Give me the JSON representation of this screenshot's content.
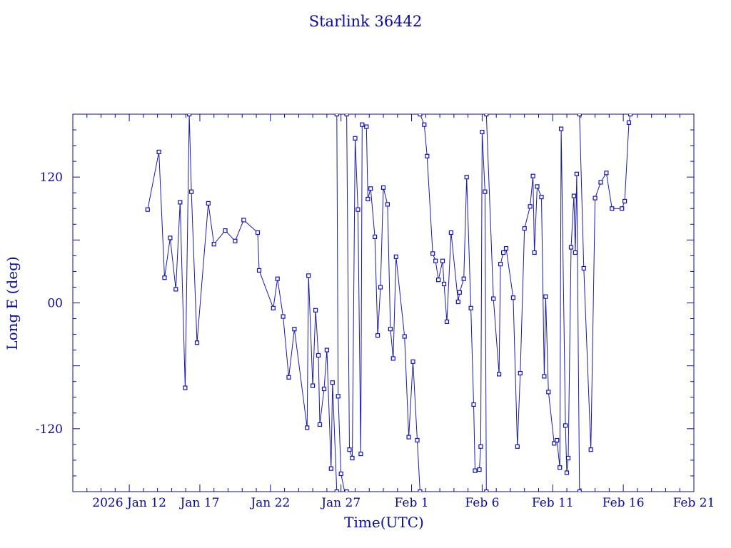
{
  "chart_data": {
    "type": "line",
    "title": "Starlink 36442",
    "xlabel": "Time(UTC)",
    "ylabel": "Long E (deg)",
    "x_unit": "date (2026, UTC)",
    "xlim": [
      "2026-01-08T00:00",
      "2026-02-21T00:00"
    ],
    "ylim": [
      -180,
      180
    ],
    "xticks": [
      {
        "label": "2026 Jan 12",
        "date": "2026-01-12T00:00"
      },
      {
        "label": "Jan 17",
        "date": "2026-01-17T00:00"
      },
      {
        "label": "Jan 22",
        "date": "2026-01-22T00:00"
      },
      {
        "label": "Jan 27",
        "date": "2026-01-27T00:00"
      },
      {
        "label": "Feb  1",
        "date": "2026-02-01T00:00"
      },
      {
        "label": "Feb  6",
        "date": "2026-02-06T00:00"
      },
      {
        "label": "Feb 11",
        "date": "2026-02-11T00:00"
      },
      {
        "label": "Feb 16",
        "date": "2026-02-16T00:00"
      },
      {
        "label": "Feb 21",
        "date": "2026-02-21T00:00"
      }
    ],
    "yticks": [
      {
        "label": "120",
        "value": 120
      },
      {
        "label": "00",
        "value": 0
      },
      {
        "label": "-120",
        "value": -120
      }
    ],
    "grid": false,
    "colors": {
      "axis": "#0a0aa0",
      "line": "#1a1ab0",
      "marker": "#1010c0"
    },
    "series": [
      {
        "marker": "square",
        "points": [
          [
            "2026-01-13T07:12",
            89
          ],
          [
            "2026-01-14T02:24",
            144
          ],
          [
            "2026-01-14T12:00",
            24
          ],
          [
            "2026-01-14T21:36",
            62
          ],
          [
            "2026-01-15T07:12",
            13
          ],
          [
            "2026-01-15T14:24",
            96
          ],
          [
            "2026-01-15T23:00",
            -81
          ],
          [
            "2026-01-16T06:00",
            180
          ],
          [
            "2026-01-16T09:36",
            106
          ],
          [
            "2026-01-16T19:12",
            -38
          ],
          [
            "2026-01-17T14:24",
            95
          ],
          [
            "2026-01-18T00:00",
            56
          ],
          [
            "2026-01-18T19:12",
            69
          ],
          [
            "2026-01-19T12:00",
            59
          ],
          [
            "2026-01-20T02:24",
            79
          ],
          [
            "2026-01-21T02:24",
            67
          ],
          [
            "2026-01-21T04:48",
            31
          ],
          [
            "2026-01-22T04:48",
            -5
          ],
          [
            "2026-01-22T12:00",
            23
          ],
          [
            "2026-01-22T21:36",
            -13
          ],
          [
            "2026-01-23T07:12",
            -71
          ],
          [
            "2026-01-23T16:48",
            -25
          ],
          [
            "2026-01-24T14:24",
            -119
          ],
          [
            "2026-01-24T16:48",
            26
          ],
          [
            "2026-01-25T00:00",
            -79
          ],
          [
            "2026-01-25T04:48",
            -7
          ],
          [
            "2026-01-25T09:36",
            -50
          ],
          [
            "2026-01-25T12:00",
            -116
          ],
          [
            "2026-01-25T19:12",
            -82
          ],
          [
            "2026-01-26T00:00",
            -45
          ],
          [
            "2026-01-26T07:12",
            -158
          ],
          [
            "2026-01-26T09:36",
            -76
          ],
          [
            "2026-01-26T16:48",
            -180
          ]
        ]
      },
      {
        "marker": "square",
        "points": [
          [
            "2026-01-26T16:48",
            180
          ],
          [
            "2026-01-26T19:12",
            -89
          ],
          [
            "2026-01-27T00:00",
            -163
          ],
          [
            "2026-01-27T07:12",
            -183
          ],
          [
            "2026-01-27T09:36",
            -180
          ]
        ]
      },
      {
        "marker": "square",
        "points": [
          [
            "2026-01-27T09:36",
            180
          ],
          [
            "2026-01-27T14:24",
            -140
          ],
          [
            "2026-01-27T19:12",
            -148
          ],
          [
            "2026-01-28T00:00",
            157
          ],
          [
            "2026-01-28T04:48",
            89
          ],
          [
            "2026-01-28T09:36",
            -144
          ],
          [
            "2026-01-28T12:00",
            170
          ],
          [
            "2026-01-28T19:12",
            168
          ],
          [
            "2026-01-28T21:36",
            99
          ],
          [
            "2026-01-29T02:24",
            109
          ],
          [
            "2026-01-29T09:36",
            63
          ],
          [
            "2026-01-29T14:24",
            -31
          ],
          [
            "2026-01-29T19:12",
            15
          ],
          [
            "2026-01-30T00:00",
            110
          ],
          [
            "2026-01-30T07:12",
            94
          ],
          [
            "2026-01-30T12:00",
            -25
          ],
          [
            "2026-01-30T16:48",
            -53
          ],
          [
            "2026-01-30T21:36",
            44
          ],
          [
            "2026-01-31T12:00",
            -32
          ],
          [
            "2026-01-31T19:12",
            -128
          ],
          [
            "2026-02-01T02:24",
            -56
          ],
          [
            "2026-02-01T09:36",
            -131
          ],
          [
            "2026-02-01T14:24",
            -180
          ]
        ]
      },
      {
        "marker": "square",
        "points": [
          [
            "2026-02-01T14:24",
            180
          ],
          [
            "2026-02-01T21:36",
            170
          ],
          [
            "2026-02-02T02:24",
            140
          ],
          [
            "2026-02-02T12:00",
            47
          ],
          [
            "2026-02-02T16:48",
            40
          ],
          [
            "2026-02-02T21:36",
            22
          ],
          [
            "2026-02-03T04:48",
            40
          ],
          [
            "2026-02-03T07:12",
            18
          ],
          [
            "2026-02-03T12:00",
            -18
          ],
          [
            "2026-02-03T19:12",
            67
          ],
          [
            "2026-02-04T07:12",
            1
          ],
          [
            "2026-02-04T09:36",
            10
          ],
          [
            "2026-02-04T16:48",
            23
          ],
          [
            "2026-02-04T21:36",
            120
          ],
          [
            "2026-02-05T04:48",
            -5
          ],
          [
            "2026-02-05T09:36",
            -97
          ],
          [
            "2026-02-05T12:00",
            -160
          ],
          [
            "2026-02-05T19:12",
            -159
          ],
          [
            "2026-02-05T21:36",
            -137
          ],
          [
            "2026-02-06T00:00",
            163
          ],
          [
            "2026-02-06T04:48",
            106
          ],
          [
            "2026-02-06T07:12",
            -180
          ]
        ]
      },
      {
        "marker": "square",
        "points": [
          [
            "2026-02-06T07:12",
            180
          ],
          [
            "2026-02-06T19:12",
            4
          ],
          [
            "2026-02-07T04:48",
            -68
          ],
          [
            "2026-02-07T07:12",
            37
          ],
          [
            "2026-02-07T12:00",
            48
          ],
          [
            "2026-02-07T16:48",
            52
          ],
          [
            "2026-02-08T04:48",
            5
          ],
          [
            "2026-02-08T12:00",
            -137
          ],
          [
            "2026-02-08T16:48",
            -67
          ],
          [
            "2026-02-09T00:00",
            71
          ],
          [
            "2026-02-09T09:36",
            92
          ],
          [
            "2026-02-09T14:24",
            121
          ],
          [
            "2026-02-09T16:48",
            48
          ],
          [
            "2026-02-09T21:36",
            111
          ],
          [
            "2026-02-10T04:48",
            101
          ],
          [
            "2026-02-10T09:36",
            -70
          ],
          [
            "2026-02-10T12:00",
            6
          ],
          [
            "2026-02-10T16:48",
            -85
          ],
          [
            "2026-02-11T02:24",
            -134
          ],
          [
            "2026-02-11T07:12",
            -131
          ],
          [
            "2026-02-11T12:00",
            -157
          ],
          [
            "2026-02-11T14:24",
            166
          ],
          [
            "2026-02-11T21:36",
            -117
          ],
          [
            "2026-02-12T00:00",
            -162
          ],
          [
            "2026-02-12T02:24",
            -148
          ],
          [
            "2026-02-12T07:12",
            53
          ],
          [
            "2026-02-12T12:00",
            102
          ],
          [
            "2026-02-12T14:24",
            48
          ],
          [
            "2026-02-12T16:48",
            123
          ],
          [
            "2026-02-12T21:36",
            -180
          ]
        ]
      },
      {
        "marker": "square",
        "points": [
          [
            "2026-02-12T21:36",
            180
          ],
          [
            "2026-02-13T04:48",
            33
          ],
          [
            "2026-02-13T16:48",
            -140
          ],
          [
            "2026-02-14T00:00",
            100
          ],
          [
            "2026-02-14T09:36",
            115
          ],
          [
            "2026-02-14T19:12",
            124
          ],
          [
            "2026-02-15T04:48",
            90
          ],
          [
            "2026-02-15T21:36",
            90
          ],
          [
            "2026-02-16T02:24",
            97
          ],
          [
            "2026-02-16T09:36",
            172
          ],
          [
            "2026-02-16T12:00",
            180
          ]
        ]
      }
    ]
  }
}
